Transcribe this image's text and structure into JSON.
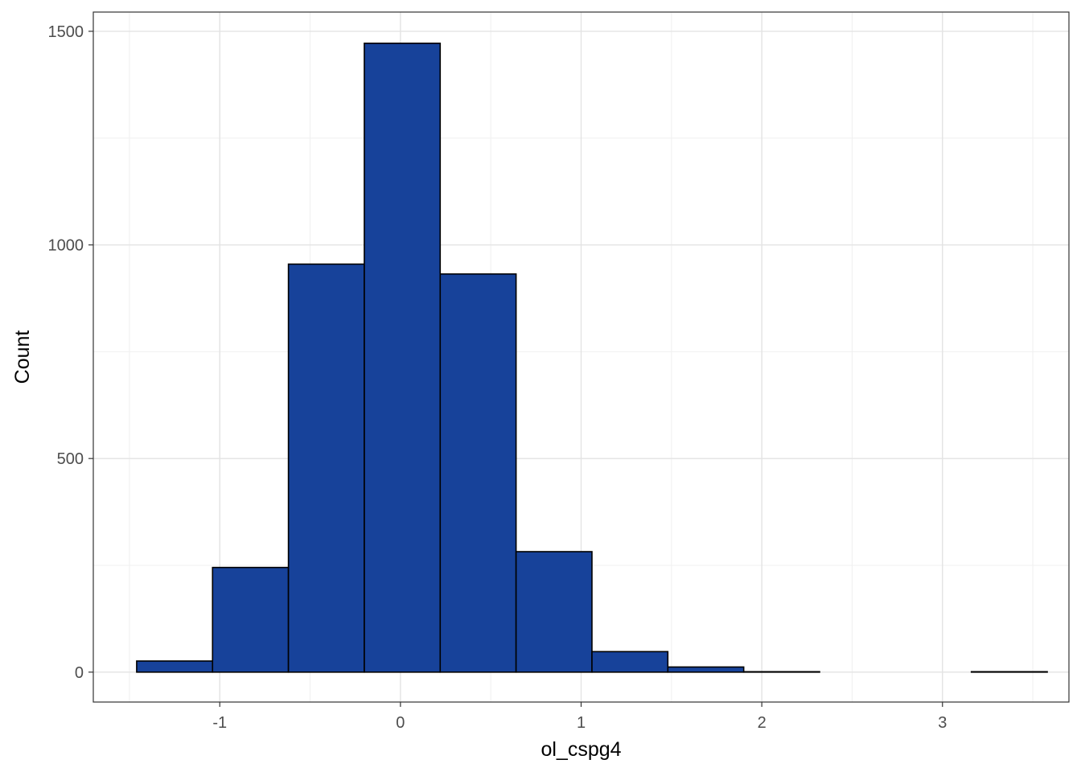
{
  "chart_data": {
    "type": "bar",
    "subtype": "histogram",
    "xlabel": "ol_cspg4",
    "ylabel": "Count",
    "xlim": [
      -1.7,
      3.7
    ],
    "ylim": [
      -70,
      1545
    ],
    "x_ticks": [
      -1,
      0,
      1,
      2,
      3
    ],
    "x_tick_labels": [
      "-1",
      "0",
      "1",
      "2",
      "3"
    ],
    "y_ticks": [
      0,
      500,
      1000,
      1500
    ],
    "y_tick_labels": [
      "0",
      "500",
      "1000",
      "1500"
    ],
    "grid": true,
    "legend": "none",
    "bar_fill": "#17429A",
    "bar_stroke": "#000000",
    "bins": [
      {
        "x0": -1.46,
        "x1": -1.04,
        "count": 26
      },
      {
        "x0": -1.04,
        "x1": -0.62,
        "count": 245
      },
      {
        "x0": -0.62,
        "x1": -0.2,
        "count": 955
      },
      {
        "x0": -0.2,
        "x1": 0.22,
        "count": 1472
      },
      {
        "x0": 0.22,
        "x1": 0.64,
        "count": 932
      },
      {
        "x0": 0.64,
        "x1": 1.06,
        "count": 282
      },
      {
        "x0": 1.06,
        "x1": 1.48,
        "count": 48
      },
      {
        "x0": 1.48,
        "x1": 1.9,
        "count": 12
      },
      {
        "x0": 1.9,
        "x1": 2.32,
        "count": 1
      },
      {
        "x0": 2.32,
        "x1": 2.74,
        "count": 0
      },
      {
        "x0": 2.74,
        "x1": 3.16,
        "count": 0
      },
      {
        "x0": 3.16,
        "x1": 3.58,
        "count": 1
      }
    ]
  }
}
